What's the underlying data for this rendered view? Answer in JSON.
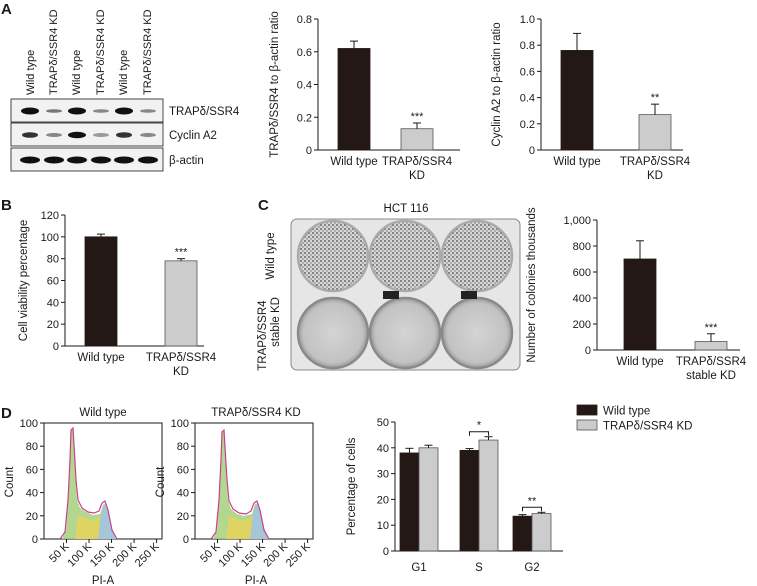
{
  "panels": {
    "a": "A",
    "b": "B",
    "c": "C",
    "d": "D"
  },
  "blot": {
    "lanes": [
      "Wild type",
      "TRAPδ/SSR4 KD",
      "Wild type",
      "TRAPδ/SSR4 KD",
      "Wild type",
      "TRAPδ/SSR4 KD"
    ],
    "rows": [
      "TRAPδ/SSR4",
      "Cyclin A2",
      "β-actin"
    ]
  },
  "colony_image": {
    "title": "HCT 116",
    "row_labels": [
      "Wild type",
      "TRAPδ/SSR4 stable KD"
    ]
  },
  "histograms": [
    {
      "title": "Wild type",
      "ylabel": "Count",
      "xlabel": "PI-A",
      "yticks": [
        "0",
        "20",
        "40",
        "60",
        "80",
        "100"
      ],
      "xticks": [
        "50 K",
        "100 K",
        "150 K",
        "200 K",
        "250 K"
      ]
    },
    {
      "title": "TRAPδ/SSR4 KD",
      "ylabel": "Count",
      "xlabel": "PI-A",
      "yticks": [
        "0",
        "20",
        "40",
        "60",
        "80",
        "100"
      ],
      "xticks": [
        "50 K",
        "100 K",
        "150 K",
        "200 K",
        "250 K"
      ]
    }
  ],
  "colors": {
    "dark": "#231815",
    "light": "#cccccc"
  },
  "chart_data": [
    {
      "id": "a1",
      "type": "bar",
      "categories": [
        "Wild type",
        "TRAPδ/SSR4 KD"
      ],
      "values": [
        0.62,
        0.13
      ],
      "errors": [
        0.045,
        0.035
      ],
      "ylabel": "TRAPδ/SSR4 to β-actin ratio",
      "ylim": [
        0,
        0.8
      ],
      "yticks": [
        0,
        0.2,
        0.4,
        0.6,
        0.8
      ],
      "ytick_labels": [
        "0",
        "0.2",
        "0.4",
        "0.6",
        "0.8"
      ],
      "cat_labels": [
        [
          "Wild type"
        ],
        [
          "TRAPδ/SSR4",
          "KD"
        ]
      ],
      "significance": [
        "",
        "***"
      ]
    },
    {
      "id": "a2",
      "type": "bar",
      "categories": [
        "Wild type",
        "TRAPδ/SSR4 KD"
      ],
      "values": [
        0.76,
        0.27
      ],
      "errors": [
        0.13,
        0.08
      ],
      "ylabel": "Cyclin A2 to β-actin ratio",
      "ylim": [
        0,
        1.0
      ],
      "yticks": [
        0,
        0.2,
        0.4,
        0.6,
        0.8,
        1.0
      ],
      "ytick_labels": [
        "0",
        "0.2",
        "0.4",
        "0.6",
        "0.8",
        "1.0"
      ],
      "cat_labels": [
        [
          "Wild type"
        ],
        [
          "TRAPδ/SSR4",
          "KD"
        ]
      ],
      "significance": [
        "",
        "**"
      ]
    },
    {
      "id": "b",
      "type": "bar",
      "categories": [
        "Wild type",
        "TRAPδ/SSR4 KD"
      ],
      "values": [
        100,
        78
      ],
      "errors": [
        2.5,
        2
      ],
      "ylabel": "Cell viability percentage",
      "ylim": [
        0,
        120
      ],
      "yticks": [
        0,
        20,
        40,
        60,
        80,
        100,
        120
      ],
      "ytick_labels": [
        "0",
        "20",
        "40",
        "60",
        "80",
        "100",
        "120"
      ],
      "cat_labels": [
        [
          "Wild type"
        ],
        [
          "TRAPδ/SSR4",
          "KD"
        ]
      ],
      "significance": [
        "",
        "***"
      ]
    },
    {
      "id": "c",
      "type": "bar",
      "categories": [
        "Wild type",
        "TRAPδ/SSR4 stable KD"
      ],
      "values": [
        700,
        65
      ],
      "errors": [
        140,
        60
      ],
      "ylabel": "Number of colonies thousands",
      "ylim": [
        0,
        1000
      ],
      "yticks": [
        0,
        200,
        400,
        600,
        800,
        1000
      ],
      "ytick_labels": [
        "0",
        "200",
        "400",
        "600",
        "800",
        "1,000"
      ],
      "cat_labels": [
        [
          "Wild type"
        ],
        [
          "TRAPδ/SSR4",
          "stable KD"
        ]
      ],
      "significance": [
        "",
        "***"
      ]
    },
    {
      "id": "d",
      "type": "bar",
      "categories": [
        "G1",
        "S",
        "G2"
      ],
      "series": [
        {
          "name": "Wild type",
          "values": [
            38,
            39,
            13.5
          ],
          "errors": [
            1.8,
            0.7,
            0.6
          ]
        },
        {
          "name": "TRAPδ/SSR4 KD",
          "values": [
            40,
            43,
            14.5
          ],
          "errors": [
            1,
            1.3,
            0.5
          ]
        }
      ],
      "ylabel": "Percentage of cells",
      "ylim": [
        0,
        50
      ],
      "yticks": [
        0,
        10,
        20,
        30,
        40,
        50
      ],
      "ytick_labels": [
        "0",
        "10",
        "20",
        "30",
        "40",
        "50"
      ],
      "significance": [
        "",
        "*",
        "**"
      ],
      "legend": "top-right"
    }
  ]
}
